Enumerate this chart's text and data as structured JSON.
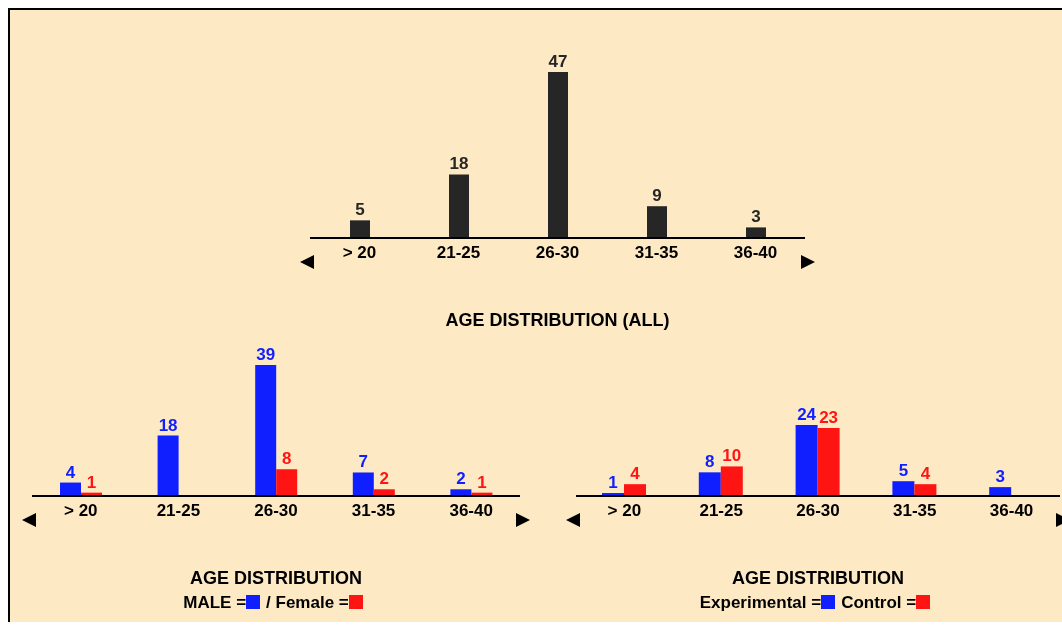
{
  "chart_data": [
    {
      "type": "bar",
      "title": "AGE DISTRIBUTION (ALL)",
      "categories": [
        "> 20",
        "21-25",
        "26-30",
        "31-35",
        "36-40"
      ],
      "values": [
        5,
        18,
        47,
        9,
        3
      ],
      "color": "#262626",
      "data_labels": true,
      "legend": false
    },
    {
      "type": "bar",
      "title": "AGE DISTRIBUTION",
      "categories": [
        "> 20",
        "21-25",
        "26-30",
        "31-35",
        "36-40"
      ],
      "data_labels": true,
      "legend": "bottom",
      "series": [
        {
          "name": "MALE =",
          "color": "#0f1fff",
          "values": [
            4,
            18,
            39,
            7,
            2
          ]
        },
        {
          "name": "/ Female =",
          "color": "#ff1414",
          "values": [
            1,
            null,
            8,
            2,
            1
          ]
        }
      ]
    },
    {
      "type": "bar",
      "title": "AGE DISTRIBUTION",
      "categories": [
        "> 20",
        "21-25",
        "26-30",
        "31-35",
        "36-40"
      ],
      "data_labels": true,
      "legend": "bottom",
      "series": [
        {
          "name": "Experimental =",
          "color": "#0f1fff",
          "values": [
            1,
            8,
            24,
            5,
            3
          ]
        },
        {
          "name": "Control =",
          "color": "#ff1414",
          "values": [
            4,
            10,
            23,
            4,
            null
          ]
        }
      ]
    }
  ]
}
